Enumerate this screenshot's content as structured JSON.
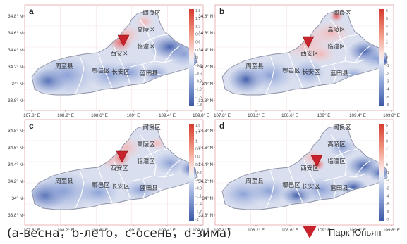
{
  "caption": "(a-весна，b-лето，c-осень，d-зима)",
  "legend": {
    "marker_label": "Парк Юньян",
    "marker_color": "#c8232c",
    "marker_icon": "red-triangle-icon"
  },
  "map": {
    "districts": [
      "周至县",
      "鄠邑区",
      "长安区",
      "蓝田县",
      "临潼区",
      "高陵区",
      "阎良区",
      "西安区"
    ],
    "x_ticks": [
      "107.8° E",
      "108.2° E",
      "108.6° E",
      "109° E",
      "109.4° E",
      "109.8° E"
    ],
    "y_ticks": [
      "34.8° N",
      "34.6° N",
      "34.4° N",
      "34.2° N",
      "34° N",
      "33.8° N"
    ],
    "marker_name": "Парк Юньян"
  },
  "panels": [
    {
      "letter": "a",
      "colorbar": [
        "1.8",
        "1.5",
        "1.2",
        "0.9",
        "0.6",
        "0.3",
        "0",
        "-0.3",
        "-0.6",
        "-0.9",
        "-1.2",
        "-1.5",
        "-1.8"
      ]
    },
    {
      "letter": "b",
      "colorbar": [
        "6",
        "5",
        "4",
        "3",
        "2",
        "1",
        "0",
        "-1",
        "-2",
        "-3",
        "-4",
        "-5",
        "-6"
      ]
    },
    {
      "letter": "c",
      "colorbar": [
        "1.6",
        "1.3",
        "1",
        "0.7",
        "0.4",
        "0.1",
        "-0.2",
        "-0.5",
        "-0.8",
        "-1.1",
        "-1.4",
        "-1.7",
        "-2"
      ]
    },
    {
      "letter": "d",
      "colorbar": [
        "5",
        "4",
        "3",
        "2",
        "1",
        "0",
        "-1",
        "-2",
        "-3",
        "-4",
        "-5",
        "-6",
        "-7"
      ]
    }
  ]
}
